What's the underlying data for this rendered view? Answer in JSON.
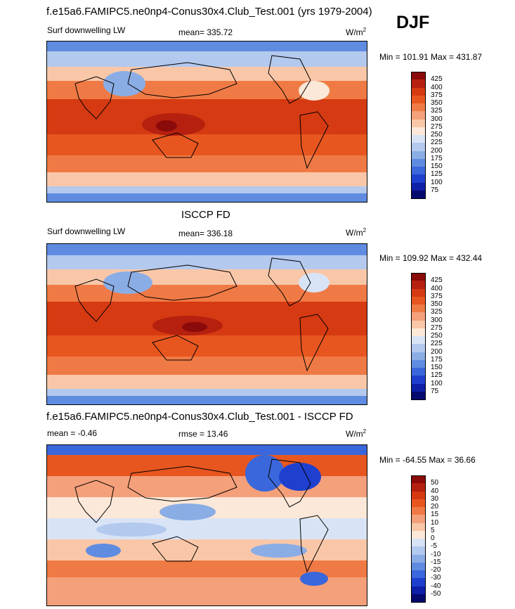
{
  "header": {
    "title": "f.e15a6.FAMIPC5.ne0np4-Conus30x4.Club_Test.001 (yrs 1979-2004)",
    "season": "DJF"
  },
  "panel1": {
    "variable": "Surf downwelling LW",
    "mean": "mean= 335.72",
    "units": "W/m",
    "units_sup": "2",
    "minmax": "Min = 101.91 Max = 431.87"
  },
  "panel2": {
    "title": "ISCCP FD",
    "variable": "Surf downwelling LW",
    "mean": "mean= 336.18",
    "units": "W/m",
    "units_sup": "2",
    "minmax": "Min = 109.92 Max = 432.44"
  },
  "panel3": {
    "title": "f.e15a6.FAMIPC5.ne0np4-Conus30x4.Club_Test.001 - ISCCP FD",
    "mean": "mean =  -0.46",
    "rmse": "rmse =  13.46",
    "units": "W/m",
    "units_sup": "2",
    "minmax": "Min = -64.55 Max =  36.66"
  },
  "colorbar_abs": {
    "levels": [
      "425",
      "400",
      "375",
      "350",
      "325",
      "300",
      "275",
      "250",
      "225",
      "200",
      "175",
      "150",
      "125",
      "100",
      "75"
    ],
    "colors": [
      "#8b0a0a",
      "#b5200f",
      "#d63a12",
      "#e8561f",
      "#f07a45",
      "#f4a07a",
      "#f9c7a8",
      "#fce8d8",
      "#d8e4f6",
      "#b3c9ee",
      "#8bade5",
      "#5f8ce0",
      "#3a67db",
      "#1f40cf",
      "#0e1fa8",
      "#050a6e"
    ]
  },
  "colorbar_diff": {
    "levels": [
      "50",
      "40",
      "30",
      "20",
      "15",
      "10",
      "5",
      "0",
      "-5",
      "-10",
      "-15",
      "-20",
      "-30",
      "-40",
      "-50"
    ],
    "colors": [
      "#8b0a0a",
      "#b5200f",
      "#d63a12",
      "#e8561f",
      "#f07a45",
      "#f4a07a",
      "#f9c7a8",
      "#fce8d8",
      "#d8e4f6",
      "#b3c9ee",
      "#8bade5",
      "#5f8ce0",
      "#3a67db",
      "#1f40cf",
      "#0e1fa8",
      "#050a6e"
    ]
  }
}
